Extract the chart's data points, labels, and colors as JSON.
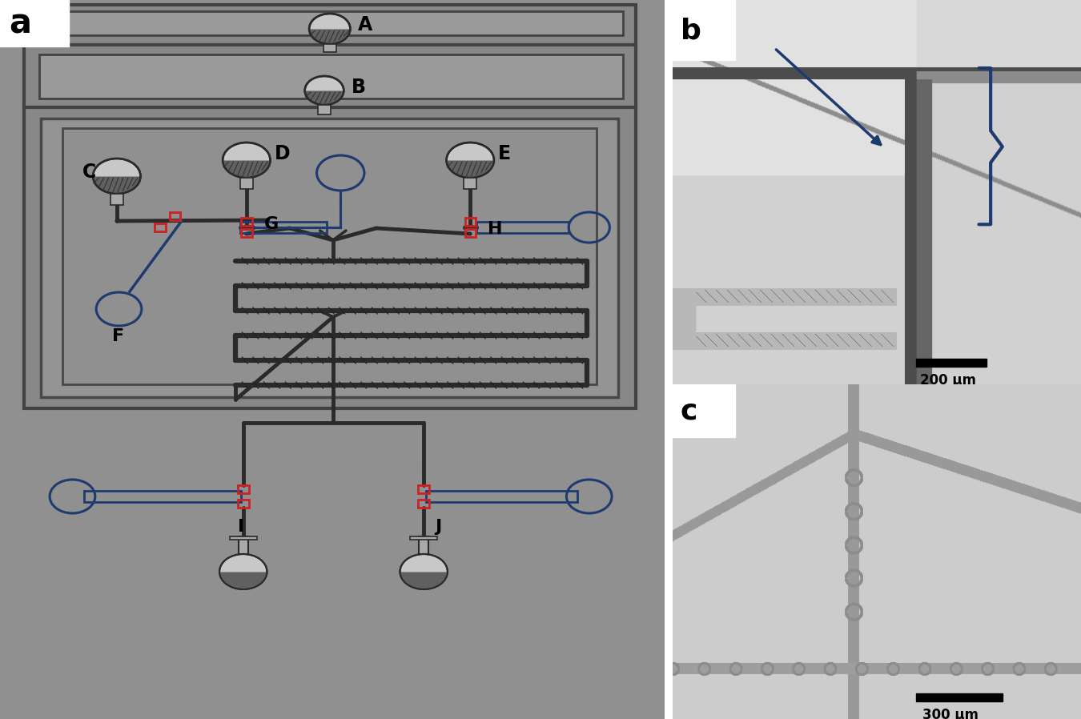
{
  "bg": "#909090",
  "dark": "#2a2a2a",
  "blue": "#1e3a6e",
  "red": "#cc2222",
  "gl": "#c0c0c0",
  "gm": "#787878",
  "white": "#ffffff",
  "panel_labels": [
    "a",
    "b",
    "c"
  ],
  "comp_labels": [
    "A",
    "B",
    "C",
    "D",
    "E",
    "F",
    "G",
    "H",
    "I",
    "J"
  ],
  "scale_b": "200 μm",
  "scale_c": "300 μm"
}
